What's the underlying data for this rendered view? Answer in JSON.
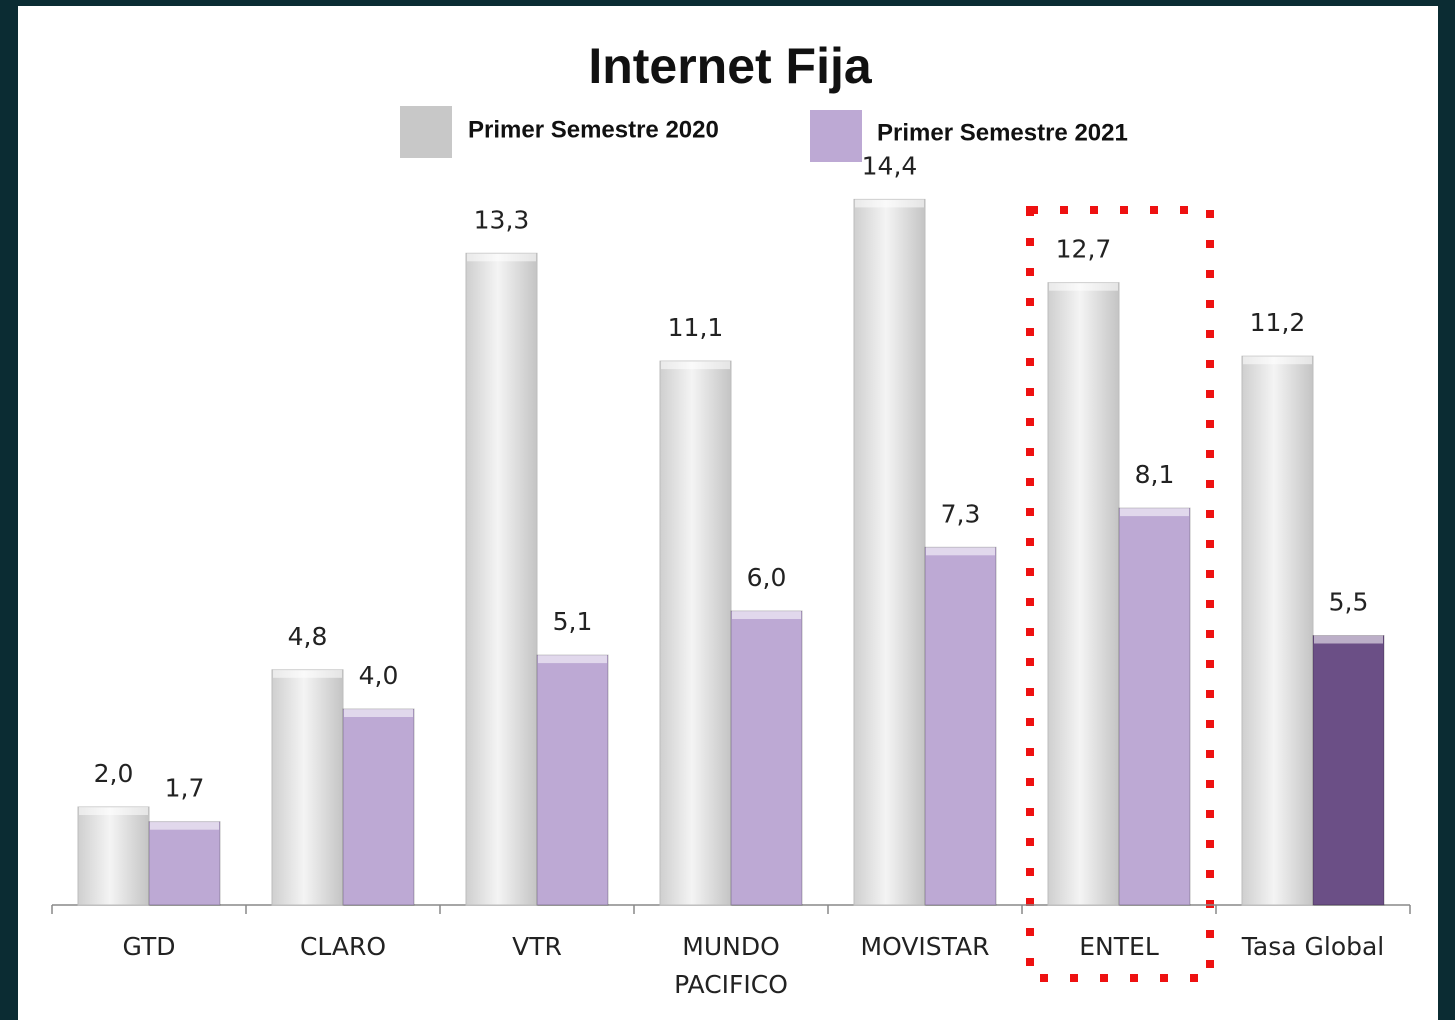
{
  "chart_data": {
    "type": "bar",
    "title": "Internet Fija",
    "categories": [
      "GTD",
      "CLARO",
      "VTR",
      "MUNDO PACIFICO",
      "MOVISTAR",
      "ENTEL",
      "Tasa Global"
    ],
    "series": [
      {
        "name": "Primer Semestre 2020",
        "color": "#e6e6e6",
        "values": [
          2.0,
          4.8,
          13.3,
          11.1,
          14.4,
          12.7,
          11.2
        ],
        "value_labels": [
          "2,0",
          "4,8",
          "13,3",
          "11,1",
          "14,4",
          "12,7",
          "11,2"
        ]
      },
      {
        "name": "Primer Semestre 2021",
        "color": "#bda9d4",
        "colors": [
          "#bda9d4",
          "#bda9d4",
          "#bda9d4",
          "#bda9d4",
          "#bda9d4",
          "#bda9d4",
          "#6b4f86"
        ],
        "values": [
          1.7,
          4.0,
          5.1,
          6.0,
          7.3,
          8.1,
          5.5
        ],
        "value_labels": [
          "1,7",
          "4,0",
          "5,1",
          "6,0",
          "7,3",
          "8,1",
          "5,5"
        ]
      }
    ],
    "legend_swatch_colors": [
      "#c8c8c8",
      "#bda9d4"
    ],
    "ylim": [
      0,
      15
    ]
  }
}
